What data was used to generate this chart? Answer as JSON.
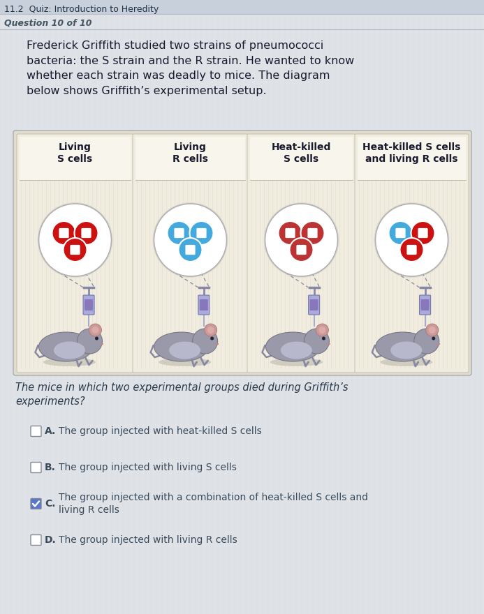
{
  "bg_color": "#dfe3e8",
  "header_bg": "#c8d0dc",
  "content_bg": "#e8ebee",
  "title_text": "11.2  Quiz: Introduction to Heredity",
  "subtitle_text": "Question 10 of 10",
  "paragraph": "Frederick Griffith studied two strains of pneumococci\nbacteria: the S strain and the R strain. He wanted to know\nwhether each strain was deadly to mice. The diagram\nbelow shows Griffith’s experimental setup.",
  "panel_labels": [
    "Living\nS cells",
    "Living\nR cells",
    "Heat-killed\nS cells",
    "Heat-killed S cells\nand living R cells"
  ],
  "panel_bg": "#f0ede0",
  "panel_stripe": "#e8e4d0",
  "question_text": "The mice in which two experimental groups died during Griffith’s\nexperiments?",
  "options": [
    {
      "label": "A.",
      "text": "The group injected with heat-killed S cells",
      "checked": false
    },
    {
      "label": "B.",
      "text": "The group injected with living S cells",
      "checked": false
    },
    {
      "label": "C.",
      "text": "The group injected with a combination of heat-killed S cells and\nliving R cells",
      "checked": true
    },
    {
      "label": "D.",
      "text": "The group injected with living R cells",
      "checked": false
    }
  ],
  "s_cell_color": "#cc1111",
  "r_cell_color": "#44aadd",
  "cell_inner": "#ffffff",
  "checkbox_checked_color": "#5577cc",
  "text_color": "#1a1a2e",
  "option_text_color": "#3a4a5a",
  "question_color": "#2a3a4a",
  "syringe_body": "#9999cc",
  "syringe_tip": "#ccccee",
  "mouse_body": "#9999aa",
  "mouse_belly": "#bbbbcc",
  "mouse_ear": "#cc8888"
}
